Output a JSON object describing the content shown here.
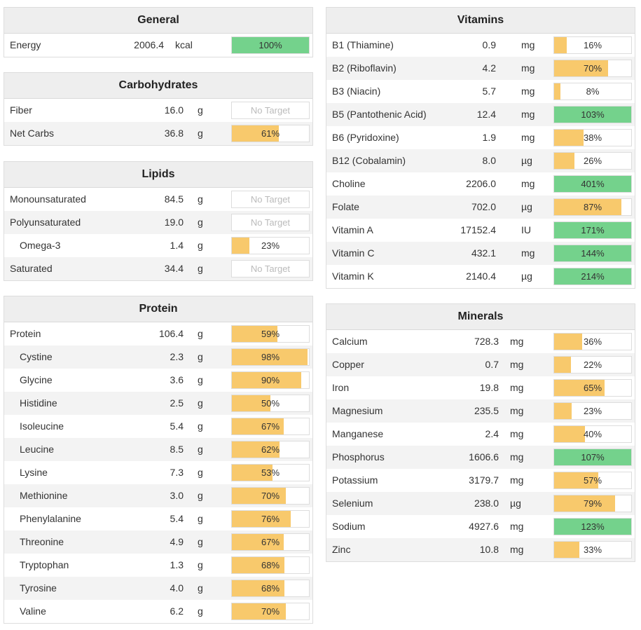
{
  "colors": {
    "green": "#74d28c",
    "orange": "#f8c96c"
  },
  "general": {
    "title": "General",
    "rows": [
      {
        "name": "Energy",
        "amount": "2006.4",
        "unit": "kcal",
        "label": "100%",
        "pct": 100,
        "color": "green"
      }
    ]
  },
  "carbohydrates": {
    "title": "Carbohydrates",
    "rows": [
      {
        "name": "Fiber",
        "amount": "16.0",
        "unit": "g",
        "label": "No Target",
        "pct": 0,
        "color": "none"
      },
      {
        "name": "Net Carbs",
        "amount": "36.8",
        "unit": "g",
        "label": "61%",
        "pct": 61,
        "color": "orange"
      }
    ]
  },
  "lipids": {
    "title": "Lipids",
    "rows": [
      {
        "name": "Monounsaturated",
        "amount": "84.5",
        "unit": "g",
        "label": "No Target",
        "pct": 0,
        "color": "none"
      },
      {
        "name": "Polyunsaturated",
        "amount": "19.0",
        "unit": "g",
        "label": "No Target",
        "pct": 0,
        "color": "none"
      },
      {
        "name": "Omega-3",
        "amount": "1.4",
        "unit": "g",
        "label": "23%",
        "pct": 23,
        "color": "orange",
        "indent": true
      },
      {
        "name": "Saturated",
        "amount": "34.4",
        "unit": "g",
        "label": "No Target",
        "pct": 0,
        "color": "none"
      }
    ]
  },
  "protein": {
    "title": "Protein",
    "rows": [
      {
        "name": "Protein",
        "amount": "106.4",
        "unit": "g",
        "label": "59%",
        "pct": 59,
        "color": "orange"
      },
      {
        "name": "Cystine",
        "amount": "2.3",
        "unit": "g",
        "label": "98%",
        "pct": 98,
        "color": "orange",
        "indent": true
      },
      {
        "name": "Glycine",
        "amount": "3.6",
        "unit": "g",
        "label": "90%",
        "pct": 90,
        "color": "orange",
        "indent": true
      },
      {
        "name": "Histidine",
        "amount": "2.5",
        "unit": "g",
        "label": "50%",
        "pct": 50,
        "color": "orange",
        "indent": true
      },
      {
        "name": "Isoleucine",
        "amount": "5.4",
        "unit": "g",
        "label": "67%",
        "pct": 67,
        "color": "orange",
        "indent": true
      },
      {
        "name": "Leucine",
        "amount": "8.5",
        "unit": "g",
        "label": "62%",
        "pct": 62,
        "color": "orange",
        "indent": true
      },
      {
        "name": "Lysine",
        "amount": "7.3",
        "unit": "g",
        "label": "53%",
        "pct": 53,
        "color": "orange",
        "indent": true
      },
      {
        "name": "Methionine",
        "amount": "3.0",
        "unit": "g",
        "label": "70%",
        "pct": 70,
        "color": "orange",
        "indent": true
      },
      {
        "name": "Phenylalanine",
        "amount": "5.4",
        "unit": "g",
        "label": "76%",
        "pct": 76,
        "color": "orange",
        "indent": true
      },
      {
        "name": "Threonine",
        "amount": "4.9",
        "unit": "g",
        "label": "67%",
        "pct": 67,
        "color": "orange",
        "indent": true
      },
      {
        "name": "Tryptophan",
        "amount": "1.3",
        "unit": "g",
        "label": "68%",
        "pct": 68,
        "color": "orange",
        "indent": true
      },
      {
        "name": "Tyrosine",
        "amount": "4.0",
        "unit": "g",
        "label": "68%",
        "pct": 68,
        "color": "orange",
        "indent": true
      },
      {
        "name": "Valine",
        "amount": "6.2",
        "unit": "g",
        "label": "70%",
        "pct": 70,
        "color": "orange",
        "indent": true
      }
    ]
  },
  "vitamins": {
    "title": "Vitamins",
    "rows": [
      {
        "name": "B1 (Thiamine)",
        "amount": "0.9",
        "unit": "mg",
        "label": "16%",
        "pct": 16,
        "color": "orange"
      },
      {
        "name": "B2 (Riboflavin)",
        "amount": "4.2",
        "unit": "mg",
        "label": "70%",
        "pct": 70,
        "color": "orange"
      },
      {
        "name": "B3 (Niacin)",
        "amount": "5.7",
        "unit": "mg",
        "label": "8%",
        "pct": 8,
        "color": "orange"
      },
      {
        "name": "B5 (Pantothenic Acid)",
        "amount": "12.4",
        "unit": "mg",
        "label": "103%",
        "pct": 103,
        "color": "green"
      },
      {
        "name": "B6 (Pyridoxine)",
        "amount": "1.9",
        "unit": "mg",
        "label": "38%",
        "pct": 38,
        "color": "orange"
      },
      {
        "name": "B12 (Cobalamin)",
        "amount": "8.0",
        "unit": "µg",
        "label": "26%",
        "pct": 26,
        "color": "orange"
      },
      {
        "name": "Choline",
        "amount": "2206.0",
        "unit": "mg",
        "label": "401%",
        "pct": 401,
        "color": "green"
      },
      {
        "name": "Folate",
        "amount": "702.0",
        "unit": "µg",
        "label": "87%",
        "pct": 87,
        "color": "orange"
      },
      {
        "name": "Vitamin A",
        "amount": "17152.4",
        "unit": "IU",
        "label": "171%",
        "pct": 171,
        "color": "green"
      },
      {
        "name": "Vitamin C",
        "amount": "432.1",
        "unit": "mg",
        "label": "144%",
        "pct": 144,
        "color": "green"
      },
      {
        "name": "Vitamin K",
        "amount": "2140.4",
        "unit": "µg",
        "label": "214%",
        "pct": 214,
        "color": "green"
      }
    ]
  },
  "minerals": {
    "title": "Minerals",
    "rows": [
      {
        "name": "Calcium",
        "amount": "728.3",
        "unit": "mg",
        "label": "36%",
        "pct": 36,
        "color": "orange"
      },
      {
        "name": "Copper",
        "amount": "0.7",
        "unit": "mg",
        "label": "22%",
        "pct": 22,
        "color": "orange"
      },
      {
        "name": "Iron",
        "amount": "19.8",
        "unit": "mg",
        "label": "65%",
        "pct": 65,
        "color": "orange"
      },
      {
        "name": "Magnesium",
        "amount": "235.5",
        "unit": "mg",
        "label": "23%",
        "pct": 23,
        "color": "orange"
      },
      {
        "name": "Manganese",
        "amount": "2.4",
        "unit": "mg",
        "label": "40%",
        "pct": 40,
        "color": "orange"
      },
      {
        "name": "Phosphorus",
        "amount": "1606.6",
        "unit": "mg",
        "label": "107%",
        "pct": 107,
        "color": "green"
      },
      {
        "name": "Potassium",
        "amount": "3179.7",
        "unit": "mg",
        "label": "57%",
        "pct": 57,
        "color": "orange"
      },
      {
        "name": "Selenium",
        "amount": "238.0",
        "unit": "µg",
        "label": "79%",
        "pct": 79,
        "color": "orange"
      },
      {
        "name": "Sodium",
        "amount": "4927.6",
        "unit": "mg",
        "label": "123%",
        "pct": 123,
        "color": "green"
      },
      {
        "name": "Zinc",
        "amount": "10.8",
        "unit": "mg",
        "label": "33%",
        "pct": 33,
        "color": "orange"
      }
    ]
  }
}
